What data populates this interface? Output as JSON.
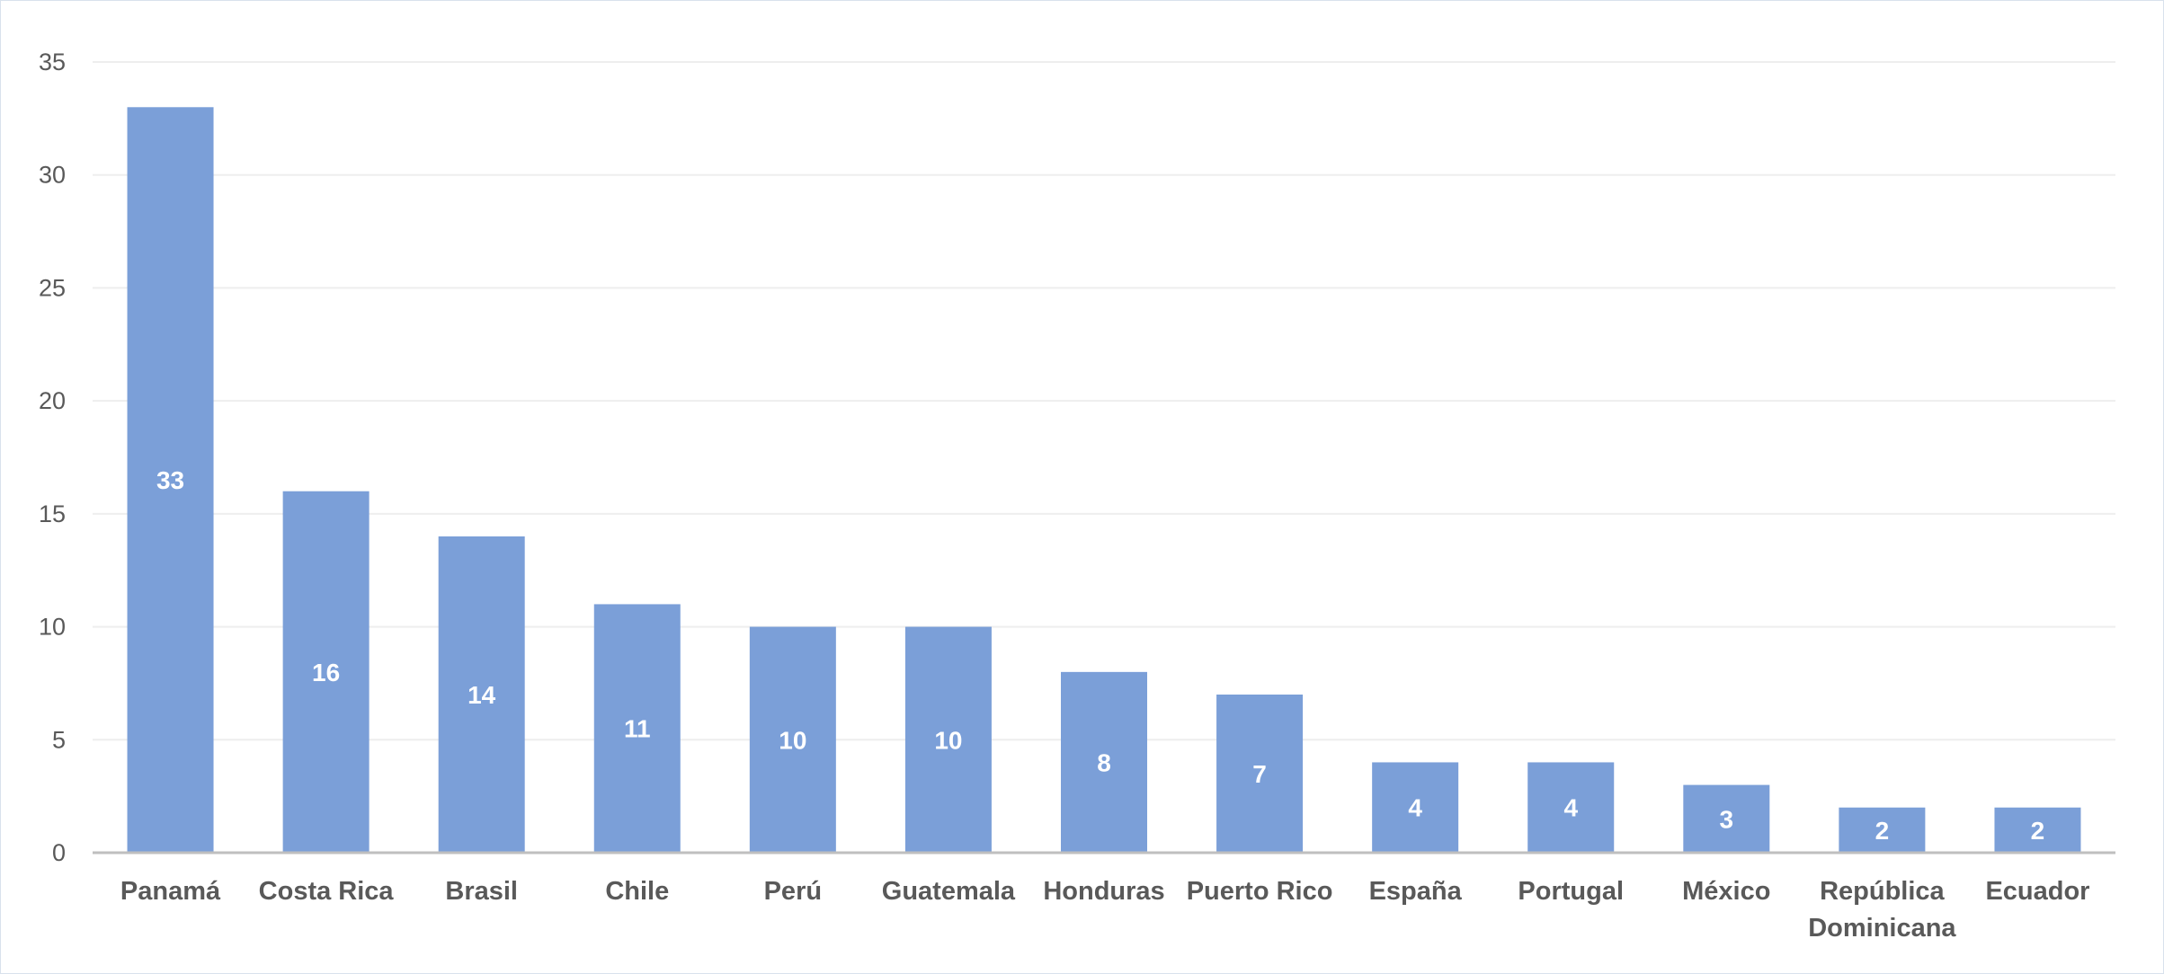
{
  "chart_data": {
    "type": "bar",
    "title": "",
    "xlabel": "",
    "ylabel": "",
    "categories": [
      "Panamá",
      "Costa Rica",
      "Brasil",
      "Chile",
      "Perú",
      "Guatemala",
      "Honduras",
      "Puerto Rico",
      "España",
      "Portugal",
      "México",
      "República Dominicana",
      "Ecuador"
    ],
    "values": [
      33,
      16,
      14,
      11,
      10,
      10,
      8,
      7,
      4,
      4,
      3,
      2,
      2
    ],
    "ylim": [
      0,
      35
    ],
    "yticks": [
      0,
      5,
      10,
      15,
      20,
      25,
      30,
      35
    ],
    "grid": true,
    "legend": "none",
    "data_labels": true,
    "bar_color": "#7b9fd8",
    "label_color": "#ffffff",
    "axis_color": "#bfbfbf",
    "grid_color": "#eeeeee",
    "text_color": "#595959"
  }
}
